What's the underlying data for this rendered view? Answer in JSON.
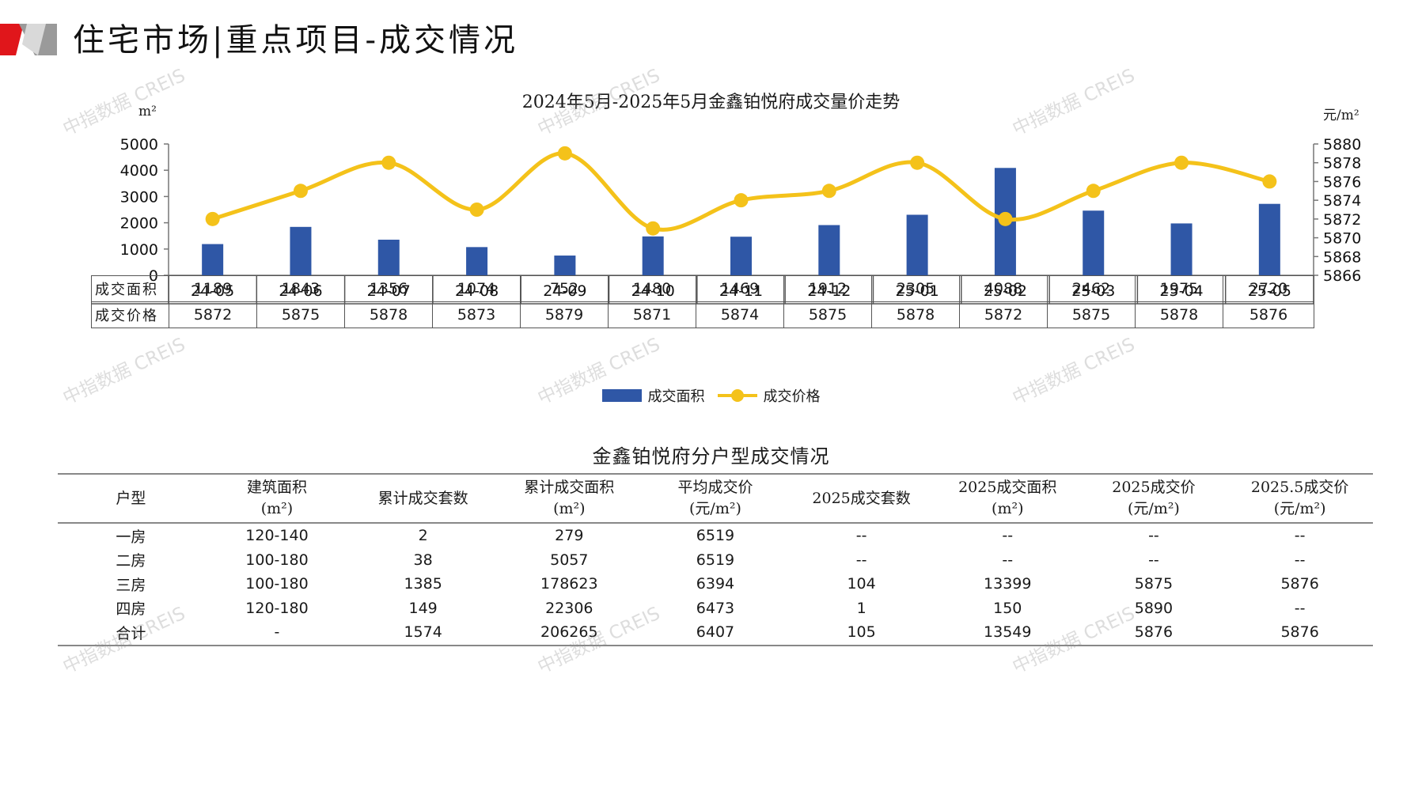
{
  "header": {
    "title": "住宅市场|重点项目-成交情况"
  },
  "colors": {
    "bar": "#2f57a6",
    "line": "#f4c21a",
    "logo_red": "#e0161b",
    "logo_grey": "#8c8c8c"
  },
  "chart_data": {
    "type": "bar",
    "title": "2024年5月-2025年5月金鑫铂悦府成交量价走势",
    "categories": [
      "24-05",
      "24-06",
      "24-07",
      "24-08",
      "24-09",
      "24-10",
      "24-11",
      "24-12",
      "25-01",
      "25-02",
      "25-03",
      "25-04",
      "25-05"
    ],
    "series": [
      {
        "name": "成交面积",
        "type": "bar",
        "axis": "left",
        "values": [
          1189,
          1843,
          1356,
          1074,
          752,
          1480,
          1469,
          1912,
          2305,
          4088,
          2462,
          1975,
          2720
        ]
      },
      {
        "name": "成交价格",
        "type": "line",
        "axis": "right",
        "values": [
          5872,
          5875,
          5878,
          5873,
          5879,
          5871,
          5874,
          5875,
          5878,
          5872,
          5875,
          5878,
          5876
        ]
      }
    ],
    "ylabel_left": "m²",
    "ylabel_right": "元/m²",
    "ylim_left": [
      0,
      5000
    ],
    "yticks_left": [
      0,
      1000,
      2000,
      3000,
      4000,
      5000
    ],
    "ylim_right": [
      5866,
      5880
    ],
    "yticks_right": [
      5866,
      5868,
      5870,
      5872,
      5874,
      5876,
      5878,
      5880
    ],
    "legend": "bottom",
    "grid": false
  },
  "data_table": {
    "rows": [
      {
        "label": "成交面积",
        "values": [
          "1189",
          "1843",
          "1356",
          "1074",
          "752",
          "1480",
          "1469",
          "1912",
          "2305",
          "4088",
          "2462",
          "1975",
          "2720"
        ]
      },
      {
        "label": "成交价格",
        "values": [
          "5872",
          "5875",
          "5878",
          "5873",
          "5879",
          "5871",
          "5874",
          "5875",
          "5878",
          "5872",
          "5875",
          "5878",
          "5876"
        ]
      }
    ]
  },
  "unit_table": {
    "title": "金鑫铂悦府分户型成交情况",
    "headers": [
      [
        "户型"
      ],
      [
        "建筑面积",
        "(m²)"
      ],
      [
        "累计成交套数"
      ],
      [
        "累计成交面积",
        "(m²)"
      ],
      [
        "平均成交价",
        "(元/m²)"
      ],
      [
        "2025成交套数"
      ],
      [
        "2025成交面积",
        "(m²)"
      ],
      [
        "2025成交价",
        "(元/m²)"
      ],
      [
        "2025.5成交价",
        "(元/m²)"
      ]
    ],
    "rows": [
      [
        "一房",
        "120-140",
        "2",
        "279",
        "6519",
        "--",
        "--",
        "--",
        "--"
      ],
      [
        "二房",
        "100-180",
        "38",
        "5057",
        "6519",
        "--",
        "--",
        "--",
        "--"
      ],
      [
        "三房",
        "100-180",
        "1385",
        "178623",
        "6394",
        "104",
        "13399",
        "5875",
        "5876"
      ],
      [
        "四房",
        "120-180",
        "149",
        "22306",
        "6473",
        "1",
        "150",
        "5890",
        "--"
      ],
      [
        "合计",
        "-",
        "1574",
        "206265",
        "6407",
        "105",
        "13549",
        "5876",
        "5876"
      ]
    ]
  },
  "watermark": "中指数据 CREIS"
}
